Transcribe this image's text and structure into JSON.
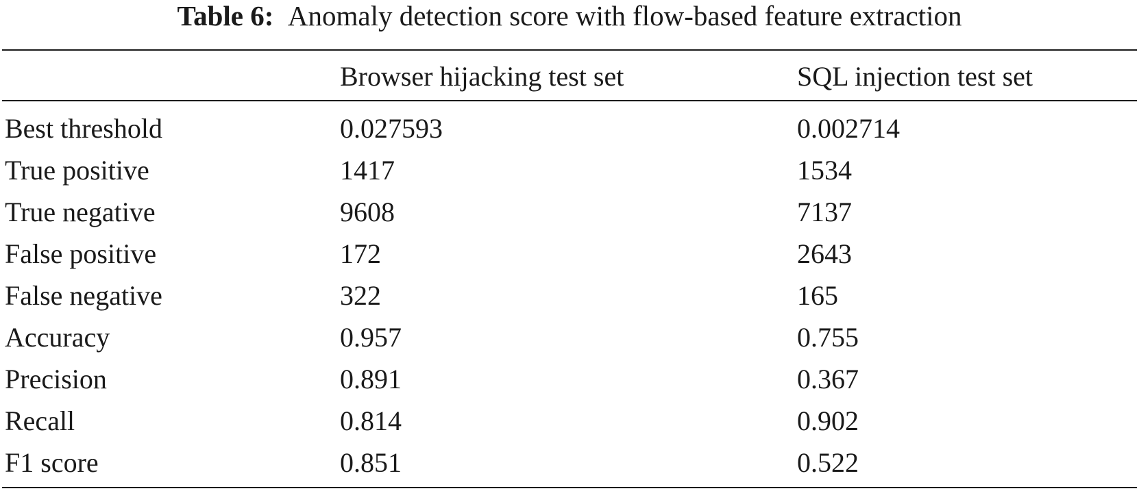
{
  "caption": {
    "label": "Table 6:",
    "text": "Anomaly detection score with flow-based feature extraction"
  },
  "table": {
    "headers": [
      "",
      "Browser hijacking test set",
      "SQL injection test set"
    ],
    "rows": [
      [
        "Best threshold",
        "0.027593",
        "0.002714"
      ],
      [
        "True positive",
        "1417",
        "1534"
      ],
      [
        "True negative",
        "9608",
        "7137"
      ],
      [
        "False positive",
        "172",
        "2643"
      ],
      [
        "False negative",
        "322",
        "165"
      ],
      [
        "Accuracy",
        "0.957",
        "0.755"
      ],
      [
        "Precision",
        "0.891",
        "0.367"
      ],
      [
        "Recall",
        "0.814",
        "0.902"
      ],
      [
        "F1 score",
        "0.851",
        "0.522"
      ]
    ]
  }
}
